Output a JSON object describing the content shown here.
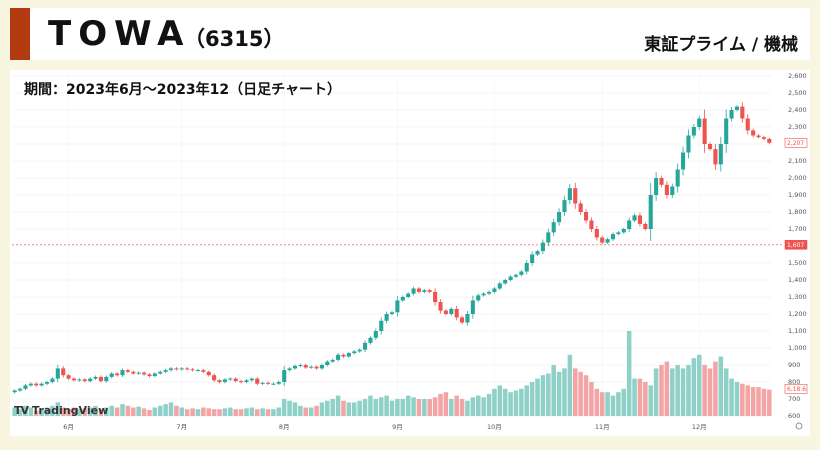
{
  "header": {
    "company": "TOWA",
    "code": "（6315）",
    "market": "東証プライム / 機械"
  },
  "chart_data": {
    "type": "candlestick",
    "title": "期間：2023年6月〜2023年12（日足チャート）",
    "source_logo": "TradingView",
    "up_color": "#26a69a",
    "down_color": "#ef5350",
    "volume_up_color": "#8fd1c8",
    "volume_down_color": "#f3a5a5",
    "price_axis": {
      "min": 600,
      "max": 2600,
      "step": 100,
      "ticks": [
        "2,600",
        "2,500",
        "2,400",
        "2,300",
        "2,200",
        "2,100",
        "2,000",
        "1,900",
        "1,800",
        "1,700",
        "1,600",
        "1,500",
        "1,400",
        "1,300",
        "1,200",
        "1,100",
        "1,000",
        "900",
        "800",
        "700",
        "600"
      ]
    },
    "x_ticks": [
      {
        "label": "6月",
        "index": 10
      },
      {
        "label": "7月",
        "index": 31
      },
      {
        "label": "8月",
        "index": 50
      },
      {
        "label": "9月",
        "index": 71
      },
      {
        "label": "10月",
        "index": 89
      },
      {
        "label": "11月",
        "index": 109
      },
      {
        "label": "12月",
        "index": 127
      }
    ],
    "price_labels": [
      {
        "text": "2,207",
        "value": 2207,
        "color": "#ef5350"
      },
      {
        "text": "1,607",
        "value": 1607,
        "color": "#ef5350",
        "dashed_line": true
      },
      {
        "text": "6,18.6",
        "value": 760,
        "color": "#ef5350"
      }
    ],
    "close": [
      750,
      760,
      780,
      790,
      780,
      790,
      800,
      820,
      880,
      840,
      820,
      810,
      815,
      805,
      820,
      830,
      805,
      830,
      850,
      840,
      870,
      860,
      850,
      855,
      845,
      835,
      850,
      860,
      870,
      880,
      875,
      880,
      875,
      870,
      870,
      860,
      840,
      810,
      800,
      815,
      820,
      805,
      800,
      810,
      820,
      790,
      795,
      790,
      790,
      800,
      870,
      880,
      895,
      900,
      885,
      890,
      880,
      900,
      920,
      930,
      960,
      950,
      970,
      980,
      990,
      1030,
      1060,
      1100,
      1160,
      1200,
      1210,
      1280,
      1300,
      1320,
      1350,
      1330,
      1340,
      1330,
      1270,
      1220,
      1200,
      1230,
      1180,
      1150,
      1200,
      1280,
      1310,
      1320,
      1330,
      1350,
      1380,
      1400,
      1420,
      1430,
      1450,
      1500,
      1550,
      1570,
      1620,
      1680,
      1740,
      1800,
      1870,
      1940,
      1850,
      1800,
      1750,
      1700,
      1650,
      1620,
      1640,
      1670,
      1680,
      1700,
      1750,
      1780,
      1730,
      1700,
      1900,
      2000,
      1960,
      1900,
      1950,
      2050,
      2150,
      2250,
      2300,
      2350,
      2200,
      2170,
      2080,
      2200,
      2350,
      2400,
      2420,
      2350,
      2280,
      2250,
      2240,
      2230,
      2207
    ],
    "volume": [
      650,
      640,
      660,
      650,
      630,
      640,
      650,
      660,
      680,
      650,
      640,
      650,
      640,
      645,
      650,
      660,
      640,
      650,
      660,
      650,
      670,
      660,
      650,
      655,
      645,
      635,
      650,
      660,
      670,
      680,
      660,
      650,
      640,
      645,
      640,
      650,
      645,
      640,
      640,
      645,
      650,
      640,
      640,
      645,
      650,
      640,
      645,
      640,
      640,
      650,
      700,
      690,
      680,
      660,
      650,
      650,
      660,
      680,
      690,
      700,
      720,
      690,
      680,
      680,
      690,
      700,
      720,
      700,
      710,
      720,
      690,
      700,
      700,
      720,
      710,
      700,
      700,
      700,
      710,
      730,
      740,
      700,
      720,
      700,
      690,
      710,
      720,
      710,
      730,
      760,
      780,
      760,
      740,
      750,
      760,
      780,
      800,
      820,
      840,
      850,
      900,
      860,
      880,
      960,
      880,
      860,
      840,
      800,
      760,
      740,
      740,
      720,
      740,
      760,
      1100,
      820,
      820,
      800,
      780,
      880,
      900,
      920,
      880,
      900,
      880,
      900,
      940,
      960,
      900,
      880,
      920,
      950,
      880,
      820,
      800,
      790,
      780,
      770,
      770,
      760,
      755
    ]
  }
}
